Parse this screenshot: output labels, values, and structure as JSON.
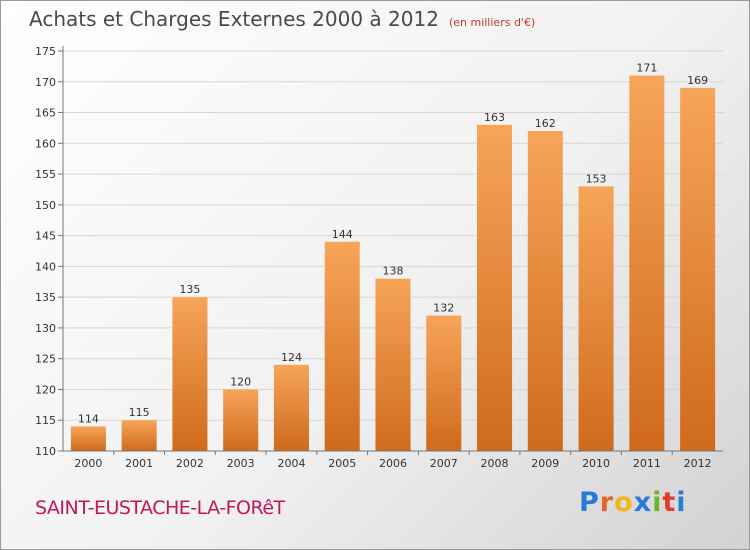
{
  "title": "Achats et Charges Externes 2000 à 2012",
  "unit": "(en milliers d'€)",
  "commune": "SAINT-EUSTACHE-LA-FORêT",
  "brand": {
    "text": "Proxiti",
    "letters": [
      "P",
      "r",
      "o",
      "x",
      "i",
      "t",
      "i"
    ],
    "colors": [
      "#2a7bd5",
      "#e8632b",
      "#f3b51b",
      "#2a7bd5",
      "#6cb52d",
      "#e23b2e",
      "#2a7bd5"
    ]
  },
  "chart_data": {
    "type": "bar",
    "categories": [
      "2000",
      "2001",
      "2002",
      "2003",
      "2004",
      "2005",
      "2006",
      "2007",
      "2008",
      "2009",
      "2010",
      "2011",
      "2012"
    ],
    "values": [
      114,
      115,
      135,
      120,
      124,
      144,
      138,
      132,
      163,
      162,
      153,
      171,
      169
    ],
    "ylim": [
      110,
      175
    ],
    "yticks": [
      110,
      115,
      120,
      125,
      130,
      135,
      140,
      145,
      150,
      155,
      160,
      165,
      170,
      175
    ],
    "grid": true,
    "bar_color_top": "#f7a559",
    "bar_color_bottom": "#cf6a1c"
  }
}
